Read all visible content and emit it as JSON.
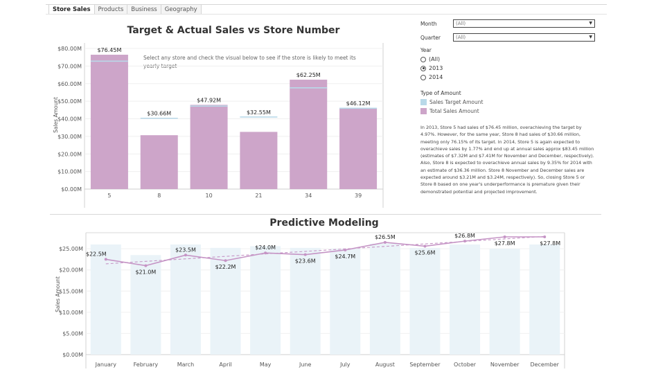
{
  "tabs": [
    "Store Sales",
    "Products",
    "Business",
    "Geography"
  ],
  "top_chart": {
    "title": "Target & Actual Sales vs Store Number",
    "ylabel": "Sales Amount",
    "note_line1": "Select any store and check the visual below to see if the store is likely to meet its",
    "note_line2": "yearly target",
    "yticks": [
      "$0.00M",
      "$10.00M",
      "$20.00M",
      "$30.00M",
      "$40.00M",
      "$50.00M",
      "$60.00M",
      "$70.00M",
      "$80.00M"
    ]
  },
  "bottom_chart": {
    "title": "Predictive Modeling",
    "ylabel": "Sales Amount",
    "yticks": [
      "$0.00M",
      "$5.00M",
      "$10.00M",
      "$15.00M",
      "$20.00M",
      "$25.00M"
    ]
  },
  "filters": {
    "month_label": "Month",
    "month_value": "(All)",
    "quarter_label": "Quarter",
    "quarter_value": "(All)",
    "year_label": "Year",
    "year_options": [
      "(All)",
      "2013",
      "2014"
    ],
    "year_selected": "2013"
  },
  "legend": {
    "title": "Type of Amount",
    "items": [
      {
        "label": "Sales Target Amount",
        "color": "#b9d9e9"
      },
      {
        "label": "Total Sales Amount",
        "color": "#cda5c9"
      }
    ]
  },
  "description": "In 2013, Store 5 had sales of $76.45 million, overachieving the target by 4.97%. However, for the same year, Store 8 had sales of $30.66 million, meeting only 76.15% of its target. In 2014, Store 5 is again expected to overachieve sales by 1.77% and end up at annual sales approx $83.45 million (estimates of $7.32M and $7.41M for November and December, respectively). Also, Store 8 is expected to overachieve annual sales by 9.35% for 2014 with an estimate of $36.36 million. Store 8 November and December sales are expected around $3.21M and $3.24M, respectively). So, closing Store 5 or Store 8 based on one year's underperformance is premature given their demonstrated potential and projected improvement.",
  "colors": {
    "actual": "#cda5c9",
    "target": "#b9d9e9",
    "bar_light": "#eaf3f8",
    "line": "#c594c5"
  },
  "chart_data": [
    {
      "type": "bar",
      "title": "Target & Actual Sales vs Store Number",
      "ylabel": "Sales Amount",
      "ylim": [
        0,
        80
      ],
      "categories": [
        "5",
        "8",
        "10",
        "21",
        "34",
        "39"
      ],
      "series": [
        {
          "name": "Total Sales Amount",
          "values": [
            76.45,
            30.66,
            47.92,
            32.55,
            62.25,
            46.12
          ],
          "labels": [
            "$76.45M",
            "$30.66M",
            "$47.92M",
            "$32.55M",
            "$62.25M",
            "$46.12M"
          ]
        },
        {
          "name": "Sales Target Amount",
          "values": [
            72.8,
            40.3,
            47.2,
            41.0,
            57.6,
            46.0
          ]
        }
      ]
    },
    {
      "type": "bar",
      "title": "Predictive Modeling",
      "ylabel": "Sales Amount",
      "ylim": [
        0,
        28
      ],
      "categories": [
        "January",
        "February",
        "March",
        "April",
        "May",
        "June",
        "July",
        "August",
        "September",
        "October",
        "November",
        "December"
      ],
      "series": [
        {
          "name": "Sales Target Amount",
          "values": [
            26.0,
            23.5,
            26.0,
            25.2,
            25.6,
            25.2,
            25.0,
            26.2,
            25.2,
            26.0,
            25.0,
            26.0
          ]
        },
        {
          "name": "Total Sales Amount",
          "values": [
            22.5,
            21.0,
            23.5,
            22.2,
            24.0,
            23.6,
            24.7,
            26.5,
            25.6,
            26.8,
            27.8,
            27.8
          ],
          "labels": [
            "$22.5M",
            "$21.0M",
            "$23.5M",
            "$22.2M",
            "$24.0M",
            "$23.6M",
            "$24.7M",
            "$26.5M",
            "$25.6M",
            "$26.8M",
            "$27.8M",
            "$27.8M"
          ]
        }
      ]
    }
  ]
}
